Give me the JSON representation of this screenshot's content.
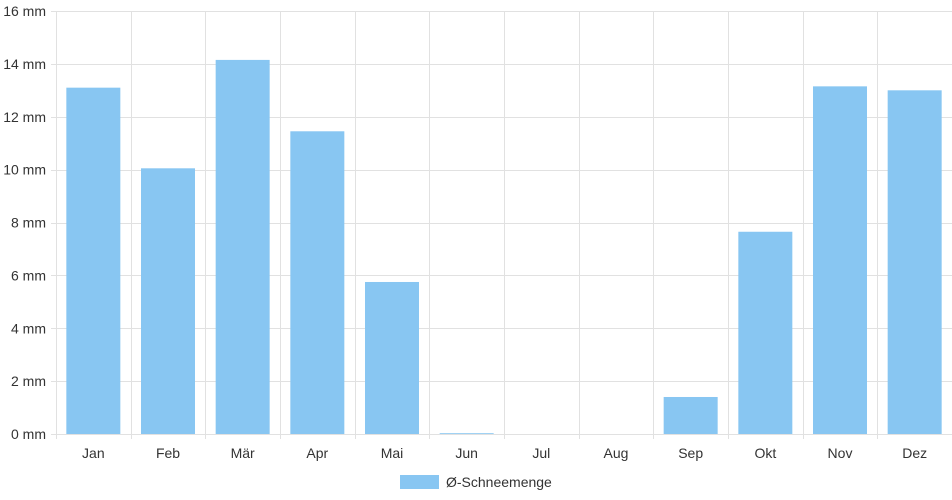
{
  "chart_data": {
    "type": "bar",
    "categories": [
      "Jan",
      "Feb",
      "Mär",
      "Apr",
      "Mai",
      "Jun",
      "Jul",
      "Aug",
      "Sep",
      "Okt",
      "Nov",
      "Dez"
    ],
    "series": [
      {
        "name": "Ø-Schneemenge",
        "values": [
          13.1,
          10.05,
          14.15,
          11.45,
          5.75,
          0.03,
          0,
          0,
          1.4,
          7.65,
          13.15,
          13.0
        ],
        "color": "#88c6f2"
      }
    ],
    "ylim": [
      0,
      16
    ],
    "yticks": [
      0,
      2,
      4,
      6,
      8,
      10,
      12,
      14,
      16
    ],
    "ytick_unit": "mm",
    "grid": true,
    "legend_position": "bottom-center"
  }
}
